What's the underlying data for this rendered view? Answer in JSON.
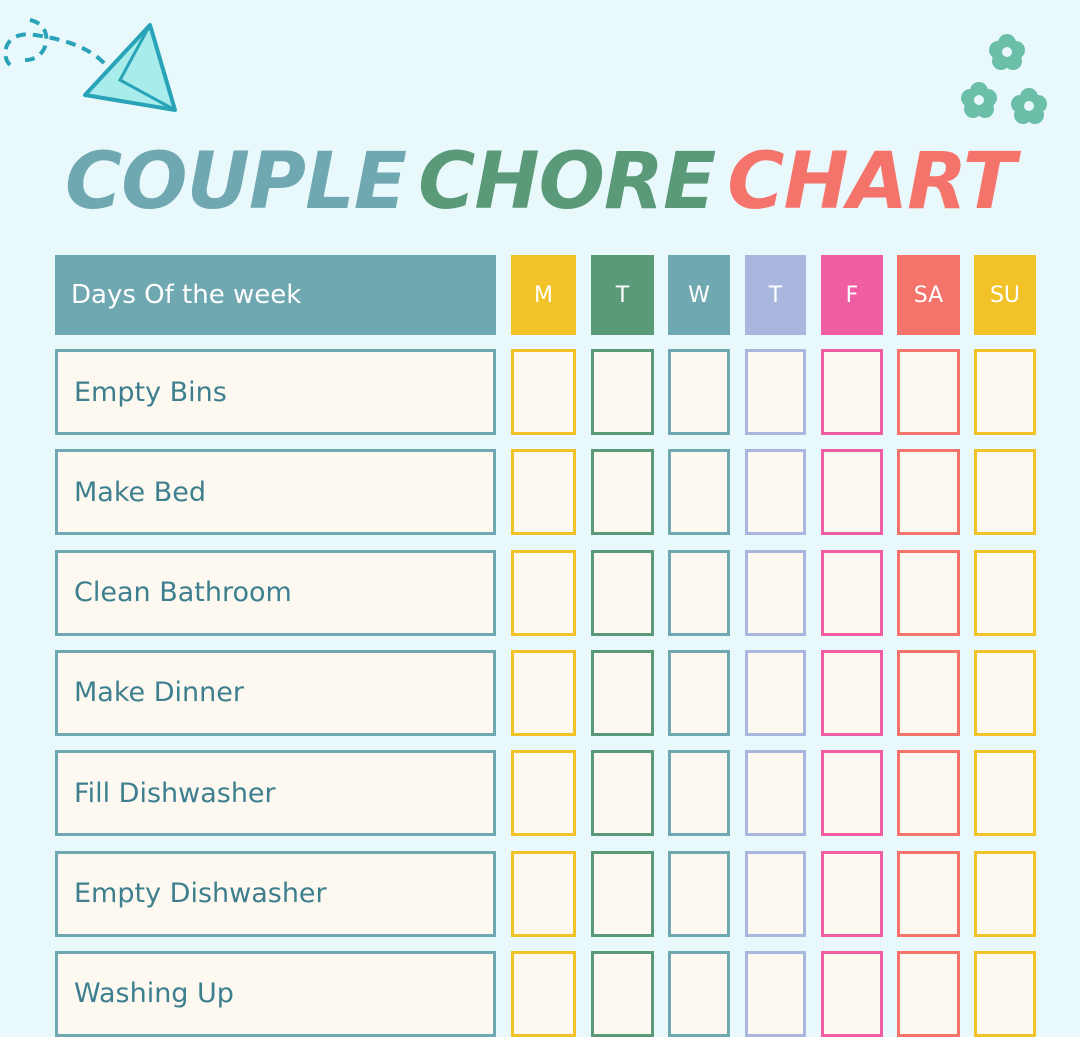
{
  "title": {
    "word1": "COUPLE",
    "word2": "CHORE",
    "word3": "CHART",
    "colors": [
      "#6fa8b0",
      "#5a9a78",
      "#f4746c"
    ]
  },
  "decorations": {
    "top_left": "paper-plane-icon",
    "top_right": "flowers-icon"
  },
  "header": {
    "label": "Days Of the week",
    "days": [
      {
        "label": "M",
        "color": "#f2c229"
      },
      {
        "label": "T",
        "color": "#5a9a78"
      },
      {
        "label": "W",
        "color": "#6fa8b0"
      },
      {
        "label": "T",
        "color": "#a9b6de"
      },
      {
        "label": "F",
        "color": "#ef5ea3"
      },
      {
        "label": "SA",
        "color": "#f4746c"
      },
      {
        "label": "SU",
        "color": "#f2c229"
      }
    ]
  },
  "chores": [
    "Empty Bins",
    "Make Bed",
    "Clean Bathroom",
    "Make Dinner",
    "Fill Dishwasher",
    "Empty Dishwasher",
    "Washing Up"
  ]
}
